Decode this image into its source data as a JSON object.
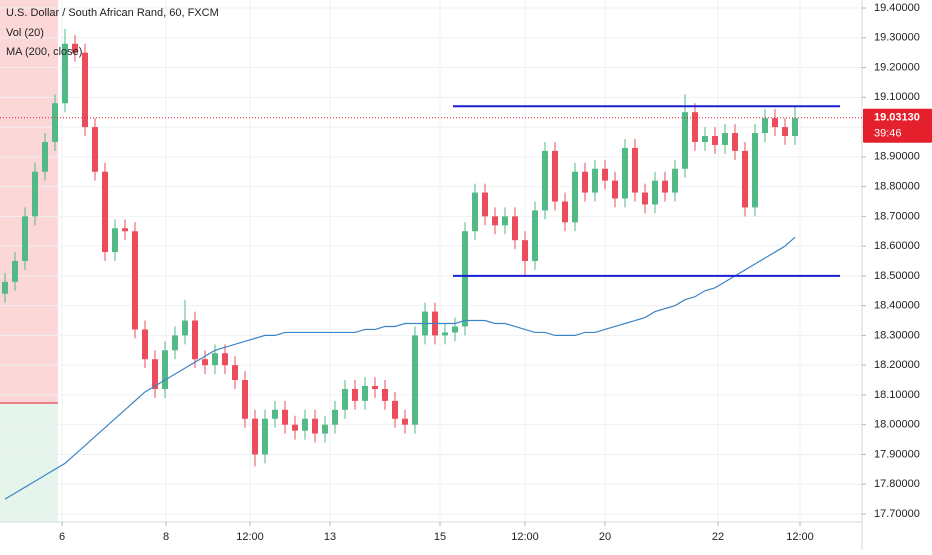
{
  "chart_data": {
    "type": "candlestick",
    "title": "U.S. Dollar / South African Rand, 60, FXCM",
    "indicators": [
      "Vol (20)",
      "MA (200, close)"
    ],
    "up_color": "#53b987",
    "down_color": "#eb4d5c",
    "xlim": [
      -0.5,
      85.7
    ],
    "ylim": [
      17.673,
      19.427
    ],
    "xticks": [
      {
        "value": 5.7,
        "label": "6"
      },
      {
        "value": 16.1,
        "label": "8"
      },
      {
        "value": 24.5,
        "label": "12:00"
      },
      {
        "value": 32.5,
        "label": "13"
      },
      {
        "value": 43.5,
        "label": "15"
      },
      {
        "value": 52,
        "label": "12:00"
      },
      {
        "value": 60,
        "label": "20"
      },
      {
        "value": 71.3,
        "label": "22"
      },
      {
        "value": 79.5,
        "label": "12:00"
      }
    ],
    "yticks": [
      {
        "value": 19.4,
        "label": "19.40000"
      },
      {
        "value": 19.3,
        "label": "19.30000"
      },
      {
        "value": 19.2,
        "label": "19.20000"
      },
      {
        "value": 19.1,
        "label": "19.10000"
      },
      {
        "value": 19.0,
        "label": "19.00000"
      },
      {
        "value": 18.9,
        "label": "18.90000"
      },
      {
        "value": 18.8,
        "label": "18.80000"
      },
      {
        "value": 18.7,
        "label": "18.70000"
      },
      {
        "value": 18.6,
        "label": "18.60000"
      },
      {
        "value": 18.5,
        "label": "18.50000"
      },
      {
        "value": 18.4,
        "label": "18.40000"
      },
      {
        "value": 18.3,
        "label": "18.30000"
      },
      {
        "value": 18.2,
        "label": "18.20000"
      },
      {
        "value": 18.1,
        "label": "18.10000"
      },
      {
        "value": 18.0,
        "label": "18.00000"
      },
      {
        "value": 17.9,
        "label": "17.90000"
      },
      {
        "value": 17.8,
        "label": "17.80000"
      },
      {
        "value": 17.7,
        "label": "17.70000"
      }
    ],
    "grid": true,
    "open": [
      18.44,
      18.48,
      18.55,
      18.7,
      18.85,
      18.95,
      19.08,
      19.28,
      19.25,
      19.0,
      18.85,
      18.58,
      18.66,
      18.65,
      18.32,
      18.22,
      18.12,
      18.25,
      18.3,
      18.35,
      18.22,
      18.2,
      18.24,
      18.2,
      18.15,
      18.02,
      17.9,
      18.02,
      18.05,
      18.0,
      17.98,
      18.02,
      17.97,
      18.0,
      18.05,
      18.12,
      18.08,
      18.13,
      18.12,
      18.08,
      18.02,
      18.0,
      18.3,
      18.38,
      18.3,
      18.31,
      18.33,
      18.65,
      18.78,
      18.7,
      18.67,
      18.7,
      18.62,
      18.55,
      18.72,
      18.92,
      18.75,
      18.68,
      18.85,
      18.78,
      18.86,
      18.82,
      18.76,
      18.93,
      18.78,
      18.74,
      18.82,
      18.78,
      18.86,
      19.05,
      18.95,
      18.97,
      18.94,
      18.98,
      18.92,
      18.73,
      18.98,
      19.03,
      19.0,
      18.97
    ],
    "high": [
      18.51,
      18.58,
      18.73,
      18.88,
      18.98,
      19.11,
      19.33,
      19.31,
      19.28,
      19.03,
      18.88,
      18.69,
      18.69,
      18.68,
      18.35,
      18.25,
      18.28,
      18.33,
      18.42,
      18.38,
      18.25,
      18.27,
      18.27,
      18.23,
      18.18,
      18.05,
      18.05,
      18.08,
      18.08,
      18.03,
      18.05,
      18.05,
      18.03,
      18.08,
      18.15,
      18.15,
      18.16,
      18.16,
      18.15,
      18.11,
      18.05,
      18.33,
      18.41,
      18.41,
      18.34,
      18.36,
      18.68,
      18.81,
      18.81,
      18.73,
      18.73,
      18.73,
      18.65,
      18.75,
      18.95,
      18.95,
      18.78,
      18.88,
      18.88,
      18.89,
      18.89,
      18.85,
      18.96,
      18.96,
      18.81,
      18.85,
      18.85,
      18.89,
      19.11,
      19.08,
      19.0,
      19.0,
      19.01,
      19.01,
      18.95,
      19.01,
      19.06,
      19.06,
      19.03,
      19.07
    ],
    "low": [
      18.41,
      18.45,
      18.52,
      18.67,
      18.82,
      18.92,
      19.05,
      19.22,
      18.97,
      18.82,
      18.55,
      18.55,
      18.62,
      18.29,
      18.19,
      18.09,
      18.09,
      18.22,
      18.27,
      18.19,
      18.17,
      18.17,
      18.17,
      18.12,
      17.99,
      17.86,
      17.87,
      17.99,
      17.97,
      17.95,
      17.95,
      17.94,
      17.94,
      17.97,
      18.02,
      18.05,
      18.05,
      18.09,
      18.05,
      17.99,
      17.97,
      17.97,
      18.27,
      18.27,
      18.27,
      18.28,
      18.3,
      18.62,
      18.67,
      18.64,
      18.64,
      18.59,
      18.5,
      18.52,
      18.69,
      18.72,
      18.65,
      18.65,
      18.75,
      18.75,
      18.79,
      18.73,
      18.73,
      18.75,
      18.71,
      18.71,
      18.75,
      18.75,
      18.83,
      18.92,
      18.92,
      18.91,
      18.91,
      18.89,
      18.7,
      18.7,
      18.95,
      18.97,
      18.94,
      18.94
    ],
    "close": [
      18.48,
      18.55,
      18.7,
      18.85,
      18.95,
      19.08,
      19.28,
      19.25,
      19.0,
      18.85,
      18.58,
      18.66,
      18.65,
      18.32,
      18.22,
      18.12,
      18.25,
      18.3,
      18.35,
      18.22,
      18.2,
      18.24,
      18.2,
      18.15,
      18.02,
      17.9,
      18.02,
      18.05,
      18.0,
      17.98,
      18.02,
      17.97,
      18.0,
      18.05,
      18.12,
      18.08,
      18.13,
      18.12,
      18.08,
      18.02,
      18.0,
      18.3,
      18.38,
      18.3,
      18.31,
      18.33,
      18.65,
      18.78,
      18.7,
      18.67,
      18.7,
      18.62,
      18.55,
      18.72,
      18.92,
      18.75,
      18.68,
      18.85,
      18.78,
      18.86,
      18.82,
      18.76,
      18.93,
      18.78,
      18.74,
      18.82,
      18.78,
      18.86,
      19.05,
      18.95,
      18.97,
      18.94,
      18.98,
      18.92,
      18.73,
      18.98,
      19.03,
      19.0,
      18.97,
      19.03
    ],
    "ma": {
      "color": "#3d85c6",
      "values": [
        17.75,
        17.77,
        17.79,
        17.81,
        17.83,
        17.85,
        17.87,
        17.9,
        17.93,
        17.96,
        17.99,
        18.02,
        18.05,
        18.08,
        18.11,
        18.13,
        18.15,
        18.17,
        18.19,
        18.21,
        18.23,
        18.25,
        18.26,
        18.27,
        18.28,
        18.29,
        18.3,
        18.3,
        18.31,
        18.31,
        18.31,
        18.31,
        18.31,
        18.31,
        18.31,
        18.31,
        18.32,
        18.32,
        18.33,
        18.33,
        18.34,
        18.34,
        18.34,
        18.34,
        18.34,
        18.34,
        18.35,
        18.35,
        18.35,
        18.34,
        18.34,
        18.33,
        18.32,
        18.31,
        18.31,
        18.3,
        18.3,
        18.3,
        18.31,
        18.31,
        18.32,
        18.33,
        18.34,
        18.35,
        18.36,
        18.38,
        18.39,
        18.4,
        18.42,
        18.43,
        18.45,
        18.46,
        18.48,
        18.5,
        18.52,
        18.54,
        18.56,
        18.58,
        18.6,
        18.63
      ]
    },
    "hlines": [
      {
        "value": 19.07,
        "start": 44.8,
        "end": 83.5,
        "color": "#1a1fd1"
      },
      {
        "value": 18.5,
        "start": 44.8,
        "end": 83.5,
        "color": "#1a1fd1"
      }
    ],
    "last_price": {
      "value": 19.0313,
      "label": "19.03130",
      "countdown": "39:46",
      "color": "#e3202b"
    }
  }
}
